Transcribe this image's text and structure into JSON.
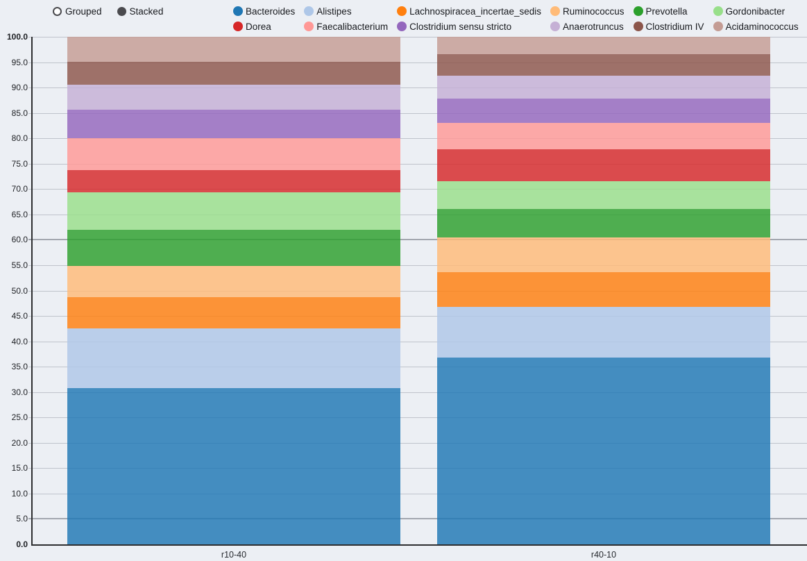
{
  "controls": {
    "grouped_label": "Grouped",
    "stacked_label": "Stacked",
    "selected": "Stacked"
  },
  "chart_data": {
    "type": "bar",
    "stacked": true,
    "title": "",
    "xlabel": "",
    "ylabel": "",
    "categories": [
      "r10-40",
      "r40-10"
    ],
    "series": [
      {
        "name": "Bacteroides",
        "color": "#1f77b4",
        "values": [
          30.8,
          36.8
        ]
      },
      {
        "name": "Alistipes",
        "color": "#aec7e8",
        "values": [
          11.8,
          10.0
        ]
      },
      {
        "name": "Lachnospiracea_incertae_sedis",
        "color": "#ff7f0e",
        "values": [
          6.1,
          6.8
        ]
      },
      {
        "name": "Ruminococcus",
        "color": "#ffbb78",
        "values": [
          6.2,
          6.9
        ]
      },
      {
        "name": "Prevotella",
        "color": "#2ca02c",
        "values": [
          7.1,
          5.6
        ]
      },
      {
        "name": "Gordonibacter",
        "color": "#98df8a",
        "values": [
          7.4,
          5.4
        ]
      },
      {
        "name": "Dorea",
        "color": "#d62728",
        "values": [
          4.3,
          6.4
        ]
      },
      {
        "name": "Faecalibacterium",
        "color": "#ff9896",
        "values": [
          6.3,
          5.1
        ]
      },
      {
        "name": "Clostridium sensu stricto",
        "color": "#9467bd",
        "values": [
          5.7,
          4.9
        ]
      },
      {
        "name": "Anaerotruncus",
        "color": "#c5b0d5",
        "values": [
          4.9,
          4.5
        ]
      },
      {
        "name": "Clostridium IV",
        "color": "#8c564b",
        "values": [
          4.5,
          4.2
        ]
      },
      {
        "name": "Acidaminococcus",
        "color": "#c49c94",
        "values": [
          4.9,
          3.4
        ]
      }
    ],
    "ylim": [
      0,
      100
    ],
    "ytick_step": 5,
    "ytick_labels": [
      "0.0",
      "5.0",
      "10.0",
      "15.0",
      "20.0",
      "25.0",
      "30.0",
      "35.0",
      "40.0",
      "45.0",
      "50.0",
      "55.0",
      "60.0",
      "65.0",
      "70.0",
      "75.0",
      "80.0",
      "85.0",
      "90.0",
      "95.0",
      "100.0"
    ],
    "emphasized_gridlines": [
      5,
      60
    ],
    "grid": true,
    "legend_position": "top",
    "bar_opacity": 0.82
  }
}
